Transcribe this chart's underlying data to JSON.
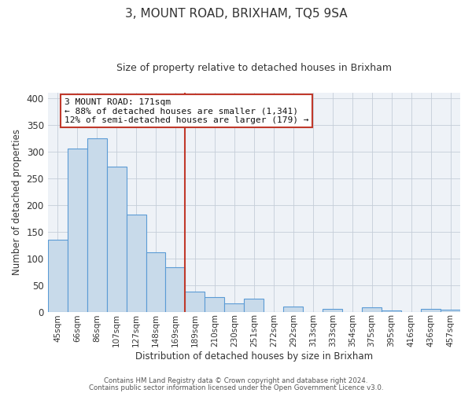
{
  "title": "3, MOUNT ROAD, BRIXHAM, TQ5 9SA",
  "subtitle": "Size of property relative to detached houses in Brixham",
  "xlabel": "Distribution of detached houses by size in Brixham",
  "ylabel": "Number of detached properties",
  "bar_labels": [
    "45sqm",
    "66sqm",
    "86sqm",
    "107sqm",
    "127sqm",
    "148sqm",
    "169sqm",
    "189sqm",
    "210sqm",
    "230sqm",
    "251sqm",
    "272sqm",
    "292sqm",
    "313sqm",
    "333sqm",
    "354sqm",
    "375sqm",
    "395sqm",
    "416sqm",
    "436sqm",
    "457sqm"
  ],
  "bar_values": [
    135,
    305,
    325,
    272,
    182,
    111,
    83,
    37,
    27,
    16,
    25,
    0,
    10,
    0,
    5,
    0,
    8,
    2,
    0,
    5,
    4
  ],
  "bar_color": "#c8daea",
  "bar_edgecolor": "#5b9bd5",
  "vline_color": "#c0392b",
  "annotation_line1": "3 MOUNT ROAD: 171sqm",
  "annotation_line2": "← 88% of detached houses are smaller (1,341)",
  "annotation_line3": "12% of semi-detached houses are larger (179) →",
  "annotation_box_color": "#c0392b",
  "ylim": [
    0,
    410
  ],
  "yticks": [
    0,
    50,
    100,
    150,
    200,
    250,
    300,
    350,
    400
  ],
  "footer1": "Contains HM Land Registry data © Crown copyright and database right 2024.",
  "footer2": "Contains public sector information licensed under the Open Government Licence v3.0.",
  "background_color": "#ffffff",
  "plot_background": "#eef2f7",
  "grid_color": "#c5cdd8",
  "title_fontsize": 11,
  "subtitle_fontsize": 9,
  "vline_index": 6
}
